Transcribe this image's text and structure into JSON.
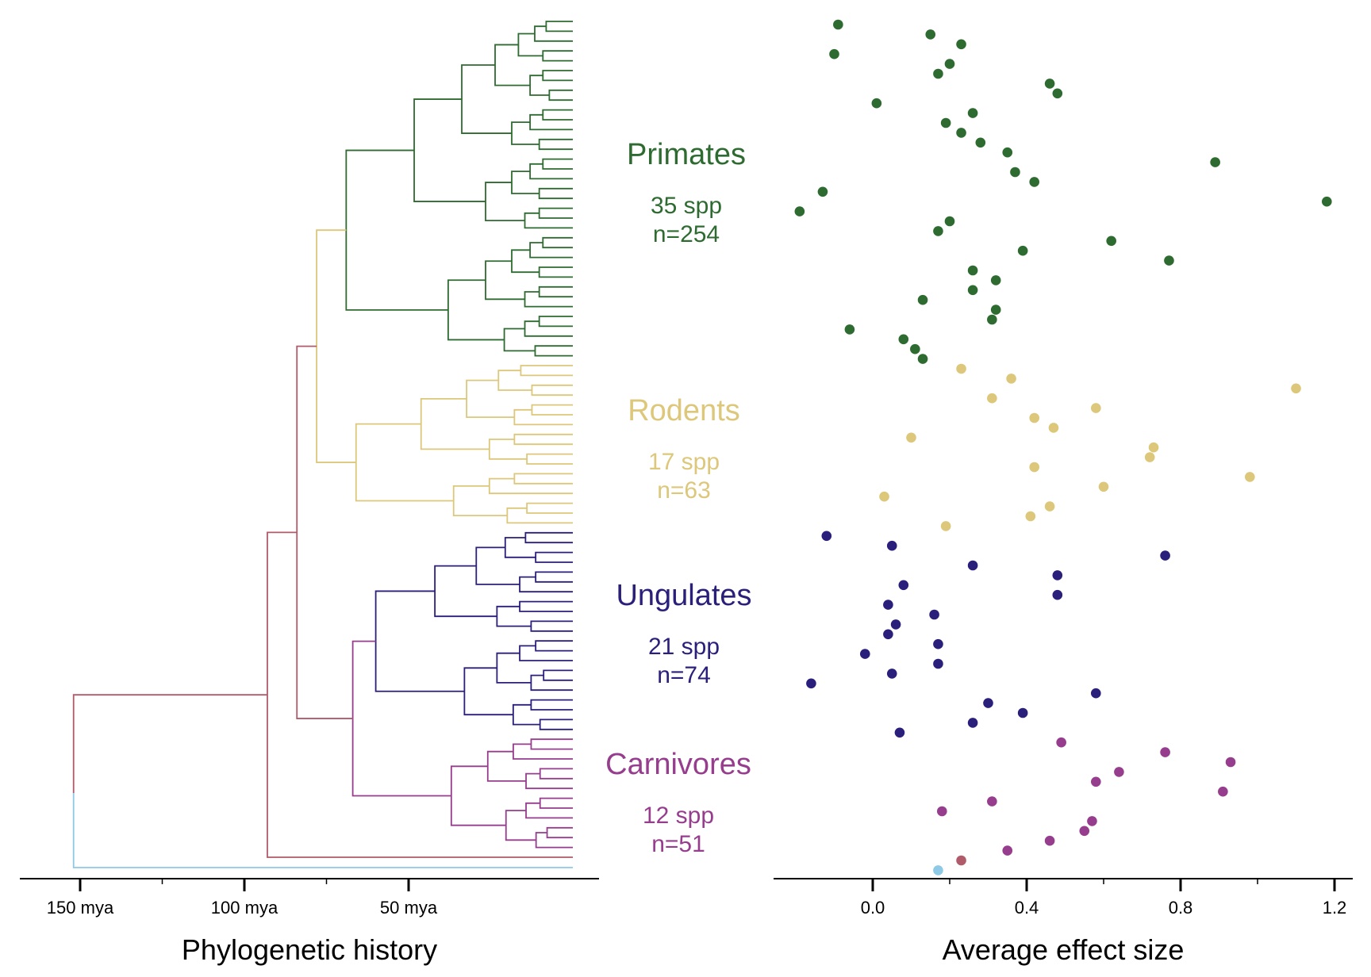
{
  "colors": {
    "primates": "#2e6b30",
    "rodents": "#dcc77a",
    "ungulates": "#2a1f7a",
    "carnivores": "#963d8e",
    "root": "#b05a6a",
    "outgroup": "#8ec9e6",
    "axis": "#000000"
  },
  "chart_data": [
    {
      "type": "dendrogram",
      "xlabel": "Phylogenetic history",
      "x_ticks": [
        {
          "value": 150,
          "label": "150 mya"
        },
        {
          "value": 100,
          "label": "100 mya"
        },
        {
          "value": 50,
          "label": "50 mya"
        }
      ],
      "x_minor_ticks": [
        125,
        75
      ],
      "xlim": [
        165,
        0
      ],
      "groups": [
        {
          "key": "primates",
          "name": "Primates",
          "species": "35 spp",
          "n": "n=254",
          "leaves": 35
        },
        {
          "key": "rodents",
          "name": "Rodents",
          "species": "17 spp",
          "n": "n=63",
          "leaves": 17
        },
        {
          "key": "ungulates",
          "name": "Ungulates",
          "species": "21 spp",
          "n": "n=74",
          "leaves": 21
        },
        {
          "key": "carnivores",
          "name": "Carnivores",
          "species": "12 spp",
          "n": "n=51",
          "leaves": 12
        }
      ]
    },
    {
      "type": "scatter",
      "xlabel": "Average effect size",
      "xlim": [
        -0.25,
        1.25
      ],
      "x_ticks": [
        {
          "value": 0.0,
          "label": "0.0"
        },
        {
          "value": 0.4,
          "label": "0.4"
        },
        {
          "value": 0.8,
          "label": "0.8"
        },
        {
          "value": 1.2,
          "label": "1.2"
        }
      ],
      "x_minor_ticks": [
        0.2,
        0.6,
        1.0
      ],
      "series": [
        {
          "key": "primates",
          "x": [
            -0.09,
            0.15,
            0.23,
            -0.1,
            0.2,
            0.17,
            0.46,
            0.48,
            0.01,
            0.26,
            0.19,
            0.23,
            0.28,
            0.35,
            0.89,
            0.37,
            0.42,
            -0.13,
            1.18,
            -0.19,
            0.2,
            0.17,
            0.62,
            0.39,
            0.77,
            0.26,
            0.32,
            0.26,
            0.13,
            0.32,
            0.31,
            -0.06,
            0.08,
            0.11,
            0.13
          ]
        },
        {
          "key": "rodents",
          "x": [
            0.23,
            0.36,
            1.1,
            0.31,
            0.58,
            0.42,
            0.47,
            0.1,
            0.73,
            0.72,
            0.42,
            0.98,
            0.6,
            0.03,
            0.46,
            0.41,
            0.19
          ]
        },
        {
          "key": "ungulates",
          "x": [
            -0.12,
            0.05,
            0.76,
            0.26,
            0.48,
            0.08,
            0.48,
            0.04,
            0.16,
            0.06,
            0.04,
            0.17,
            -0.02,
            0.17,
            0.05,
            -0.16,
            0.58,
            0.3,
            0.39,
            0.26,
            0.07
          ]
        },
        {
          "key": "carnivores",
          "x": [
            0.49,
            0.76,
            0.93,
            0.64,
            0.58,
            0.91,
            0.31,
            0.18,
            0.57,
            0.55,
            0.46,
            0.35
          ]
        },
        {
          "key": "root",
          "x": [
            0.23
          ]
        },
        {
          "key": "outgroup",
          "x": [
            0.17
          ]
        }
      ]
    }
  ]
}
